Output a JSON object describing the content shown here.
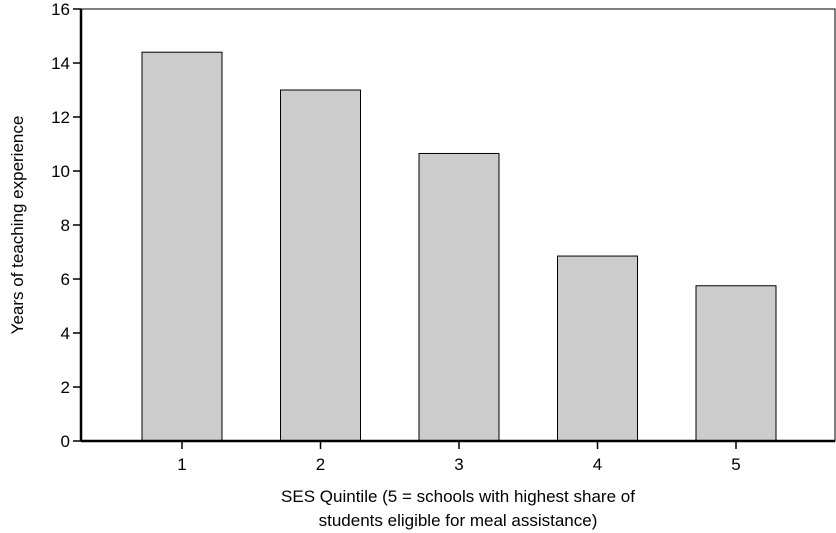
{
  "chart_data": {
    "type": "bar",
    "title": "",
    "categories": [
      "1",
      "2",
      "3",
      "4",
      "5"
    ],
    "values": [
      14.4,
      13.0,
      10.65,
      6.85,
      5.75
    ],
    "xlabel_lines": [
      "SES Quintile (5 = schools with highest share of",
      "students eligible for meal assistance)"
    ],
    "ylabel": "Years of teaching experience",
    "ylim": [
      0,
      16
    ],
    "yticks": [
      "0",
      "2",
      "4",
      "6",
      "8",
      "10",
      "12",
      "14",
      "16"
    ],
    "grid": false,
    "legend": "none",
    "bar_color": "#cccccc",
    "bar_edge_color": "#000000"
  }
}
